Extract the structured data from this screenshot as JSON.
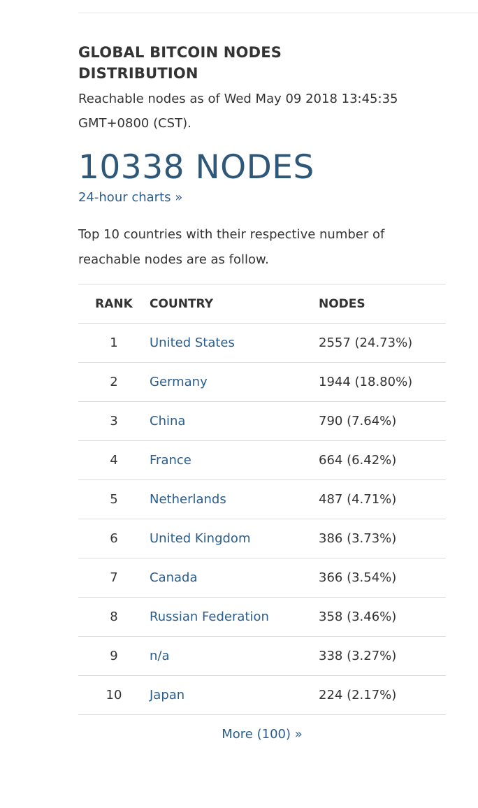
{
  "header": {
    "title": "GLOBAL BITCOIN NODES DISTRIBUTION",
    "subtitle": "Reachable nodes as of Wed May 09 2018 13:45:35 GMT+0800 (CST)."
  },
  "total": "10338 NODES",
  "charts_link": "24-hour charts »",
  "intro": "Top 10 countries with their respective number of reachable nodes are as follow.",
  "table": {
    "columns": [
      "RANK",
      "COUNTRY",
      "NODES"
    ],
    "rows": [
      [
        "1",
        "United States",
        "2557 (24.73%)"
      ],
      [
        "2",
        "Germany",
        "1944 (18.80%)"
      ],
      [
        "3",
        "China",
        "790 (7.64%)"
      ],
      [
        "4",
        "France",
        "664 (6.42%)"
      ],
      [
        "5",
        "Netherlands",
        "487 (4.71%)"
      ],
      [
        "6",
        "United Kingdom",
        "386 (3.73%)"
      ],
      [
        "7",
        "Canada",
        "366 (3.54%)"
      ],
      [
        "8",
        "Russian Federation",
        "358 (3.46%)"
      ],
      [
        "9",
        "n/a",
        "338 (3.27%)"
      ],
      [
        "10",
        "Japan",
        "224 (2.17%)"
      ]
    ]
  },
  "more_link": "More (100) »"
}
